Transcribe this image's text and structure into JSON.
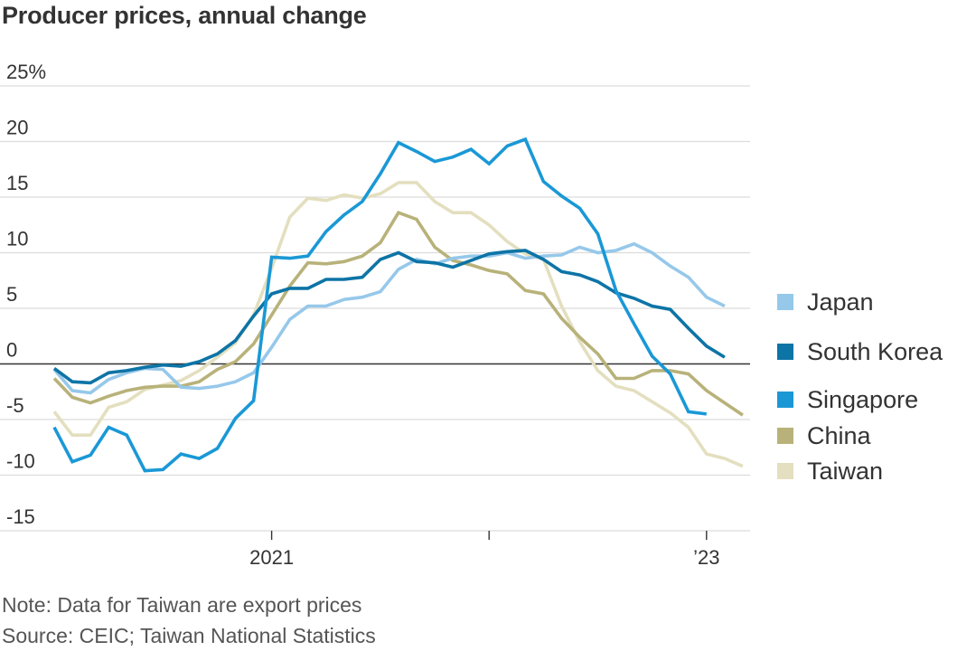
{
  "title": "Producer prices, annual change",
  "note": "Note: Data for Taiwan are export prices",
  "source": "Source: CEIC; Taiwan National Statistics",
  "chart_data": {
    "type": "line",
    "title": "Producer prices, annual change",
    "ylim": [
      -15,
      25
    ],
    "yticks": [
      {
        "value": 25,
        "label": "25%"
      },
      {
        "value": 20,
        "label": "20"
      },
      {
        "value": 15,
        "label": "15"
      },
      {
        "value": 10,
        "label": "10"
      },
      {
        "value": 5,
        "label": "5"
      },
      {
        "value": 0,
        "label": "0"
      },
      {
        "value": -5,
        "label": "-5"
      },
      {
        "value": -10,
        "label": "-10"
      },
      {
        "value": -15,
        "label": "-15"
      }
    ],
    "x": [
      "2020-01",
      "2020-02",
      "2020-03",
      "2020-04",
      "2020-05",
      "2020-06",
      "2020-07",
      "2020-08",
      "2020-09",
      "2020-10",
      "2020-11",
      "2020-12",
      "2021-01",
      "2021-02",
      "2021-03",
      "2021-04",
      "2021-05",
      "2021-06",
      "2021-07",
      "2021-08",
      "2021-09",
      "2021-10",
      "2021-11",
      "2021-12",
      "2022-01",
      "2022-02",
      "2022-03",
      "2022-04",
      "2022-05",
      "2022-06",
      "2022-07",
      "2022-08",
      "2022-09",
      "2022-10",
      "2022-11",
      "2022-12",
      "2023-01",
      "2023-02",
      "2023-03",
      "2023-04"
    ],
    "xticks": [
      {
        "value": "2021-01",
        "label": "2021"
      },
      {
        "value": "2022-01",
        "label": ""
      },
      {
        "value": "2023-01",
        "label": "’23"
      }
    ],
    "grid": true,
    "legend_position": "right",
    "series": [
      {
        "name": "Japan",
        "color": "#96c8ea",
        "values": [
          -0.5,
          -2.4,
          -2.6,
          -1.4,
          -0.8,
          -0.4,
          -0.5,
          -2.1,
          -2.2,
          -2.0,
          -1.6,
          -0.8,
          1.5,
          4.0,
          5.2,
          5.2,
          5.8,
          6.0,
          6.5,
          8.5,
          9.4,
          9.0,
          9.5,
          9.7,
          9.7,
          10.0,
          9.5,
          9.7,
          9.8,
          10.5,
          10.0,
          10.2,
          10.8,
          10.0,
          8.8,
          7.8,
          6.0,
          5.2,
          null,
          null
        ]
      },
      {
        "name": "South Korea",
        "color": "#0d74a6",
        "values": [
          -0.4,
          -1.6,
          -1.7,
          -0.8,
          -0.6,
          -0.3,
          -0.1,
          -0.2,
          0.2,
          0.9,
          2.1,
          4.3,
          6.3,
          6.8,
          6.8,
          7.6,
          7.6,
          7.8,
          9.4,
          10.0,
          9.2,
          9.1,
          8.7,
          9.3,
          9.9,
          10.1,
          10.2,
          9.4,
          8.3,
          8.0,
          7.4,
          6.4,
          5.9,
          5.2,
          4.9,
          3.2,
          1.6,
          0.6,
          null,
          null
        ]
      },
      {
        "name": "Singapore",
        "color": "#1a98d6",
        "values": [
          -5.7,
          -8.8,
          -8.2,
          -5.7,
          -6.4,
          -9.6,
          -9.5,
          -8.1,
          -8.5,
          -7.6,
          -4.9,
          -3.3,
          9.6,
          9.5,
          9.7,
          11.9,
          13.4,
          14.6,
          17.1,
          19.9,
          19.1,
          18.2,
          18.6,
          19.3,
          18.0,
          19.6,
          20.2,
          16.4,
          15.1,
          14.0,
          11.7,
          6.6,
          3.6,
          0.7,
          -0.9,
          -4.3,
          -4.5,
          null,
          null,
          null
        ]
      },
      {
        "name": "China",
        "color": "#b8b27a",
        "values": [
          -1.3,
          -3.0,
          -3.5,
          -2.9,
          -2.4,
          -2.1,
          -2.0,
          -2.0,
          -1.6,
          -0.5,
          0.2,
          1.8,
          4.4,
          7.0,
          9.1,
          9.0,
          9.2,
          9.7,
          10.9,
          13.6,
          13.0,
          10.5,
          9.3,
          8.9,
          8.4,
          8.1,
          6.6,
          6.3,
          4.1,
          2.4,
          0.9,
          -1.3,
          -1.3,
          -0.6,
          -0.6,
          -0.9,
          -2.4,
          -3.5,
          -4.6,
          null
        ]
      },
      {
        "name": "Taiwan",
        "color": "#e3dfbf",
        "values": [
          -4.3,
          -6.4,
          -6.4,
          -3.9,
          -3.4,
          -2.3,
          -1.9,
          -1.5,
          -0.6,
          0.6,
          1.9,
          4.4,
          8.6,
          13.2,
          14.9,
          14.7,
          15.2,
          14.9,
          15.3,
          16.3,
          16.3,
          14.6,
          13.6,
          13.6,
          12.5,
          11.0,
          9.9,
          9.4,
          5.2,
          2.0,
          -0.6,
          -2.0,
          -2.4,
          -3.4,
          -4.4,
          -5.7,
          -8.1,
          -8.5,
          -9.2,
          null
        ]
      }
    ]
  }
}
